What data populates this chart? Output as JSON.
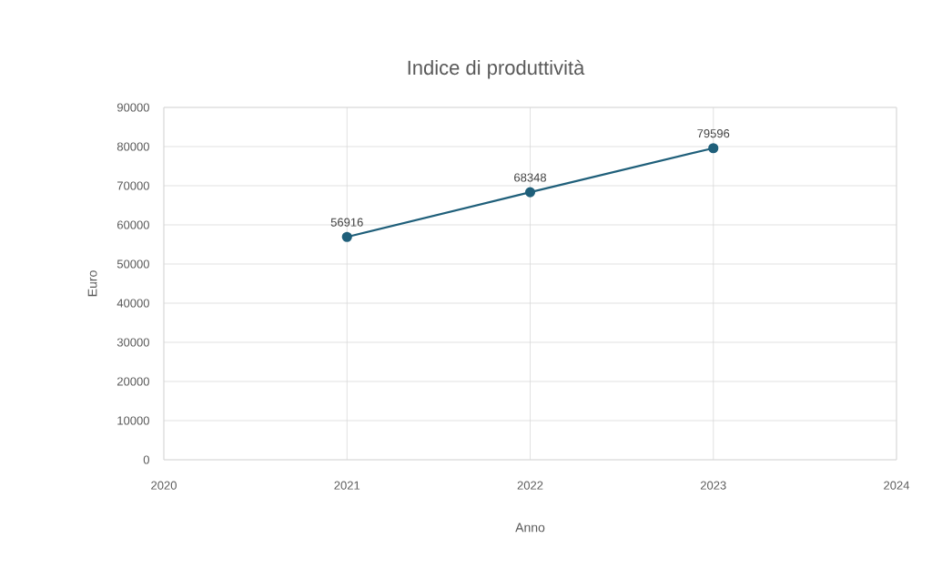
{
  "chart_data": {
    "type": "line",
    "title": "Indice di produttività",
    "xlabel": "Anno",
    "ylabel": "Euro",
    "x": [
      2021,
      2022,
      2023
    ],
    "values": [
      56916,
      68348,
      79596
    ],
    "color": "#1f5f7a",
    "xlim": [
      2020,
      2024
    ],
    "xticks": [
      2020,
      2021,
      2022,
      2023,
      2024
    ],
    "ylim": [
      0,
      90000
    ],
    "yticks": [
      0,
      10000,
      20000,
      30000,
      40000,
      50000,
      60000,
      70000,
      80000,
      90000
    ],
    "grid": true,
    "marker": "circle",
    "line_style": "solid",
    "data_labels": true
  }
}
